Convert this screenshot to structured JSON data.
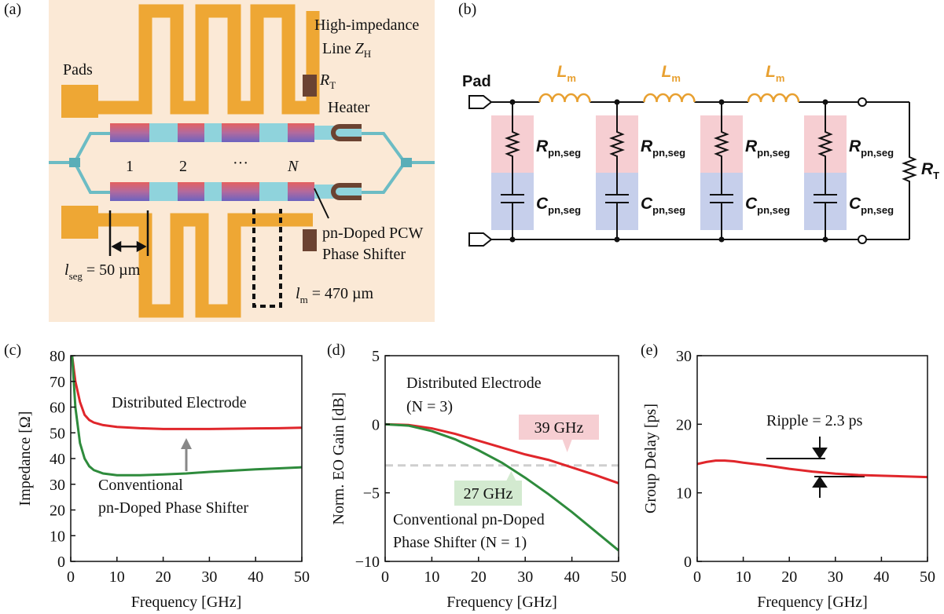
{
  "panel_labels": [
    "(a)",
    "(b)",
    "(c)",
    "(d)",
    "(e)"
  ],
  "diagram_a": {
    "high_impedance": "High-impedance",
    "line_zh": {
      "text": "Line ",
      "symbol": "Z",
      "subscript": "H"
    },
    "pads": "Pads",
    "rt": {
      "symbol": "R",
      "subscript": "T"
    },
    "heater": "Heater",
    "segments": [
      "1",
      "2",
      "···",
      "N"
    ],
    "phase_shifter": [
      "pn-Doped PCW",
      "Phase Shifter"
    ],
    "lseg": {
      "symbol": "l",
      "subscript": "seg",
      "text": " = 50 µm"
    },
    "lm": {
      "symbol": "l",
      "subscript": "m",
      "text": " = 470 µm"
    }
  },
  "diagram_b": {
    "pad": "Pad",
    "inductors": [
      {
        "symbol": "L",
        "subscript": "m"
      },
      {
        "symbol": "L",
        "subscript": "m"
      },
      {
        "symbol": "L",
        "subscript": "m"
      }
    ],
    "resistors": [
      {
        "symbol": "R",
        "subscript": "pn,seg"
      },
      {
        "symbol": "R",
        "subscript": "pn,seg"
      },
      {
        "symbol": "R",
        "subscript": "pn,seg"
      },
      {
        "symbol": "R",
        "subscript": "pn,seg"
      }
    ],
    "capacitors": [
      {
        "symbol": "C",
        "subscript": "pn,seg"
      },
      {
        "symbol": "C",
        "subscript": "pn,seg"
      },
      {
        "symbol": "C",
        "subscript": "pn,seg"
      },
      {
        "symbol": "C",
        "subscript": "pn,seg"
      }
    ],
    "rt": {
      "symbol": "R",
      "subscript": "T"
    }
  },
  "chart_data": [
    {
      "type": "line",
      "xlabel": "Frequency [GHz]",
      "ylabel": "Impedance [Ω]",
      "xlim": [
        0,
        50
      ],
      "ylim": [
        0,
        80
      ],
      "xticks": [
        0,
        10,
        20,
        30,
        40,
        50
      ],
      "yticks": [
        0,
        10,
        20,
        30,
        40,
        50,
        60,
        70,
        80
      ],
      "x": [
        0.3,
        1,
        2,
        3,
        4,
        5,
        7,
        10,
        15,
        20,
        25,
        30,
        35,
        40,
        45,
        50
      ],
      "series": [
        {
          "color": "#e0262b",
          "values": [
            80,
            70,
            62,
            57,
            55,
            54,
            53,
            52.3,
            51.8,
            51.5,
            51.5,
            51.5,
            51.6,
            51.7,
            51.8,
            52
          ]
        },
        {
          "color": "#2e8b3c",
          "values": [
            80,
            60,
            46,
            40,
            37,
            35.5,
            34.2,
            33.5,
            33.5,
            33.8,
            34.2,
            34.8,
            35.3,
            35.8,
            36.2,
            36.6
          ]
        }
      ],
      "annotations": [
        "Distributed Electrode",
        "Conventional",
        "pn-Doped Phase Shifter"
      ]
    },
    {
      "type": "line",
      "xlabel": "Frequency [GHz]",
      "ylabel": "Norm. EO Gain [dB]",
      "xlim": [
        0,
        50
      ],
      "ylim": [
        -10,
        5
      ],
      "xticks": [
        0,
        10,
        20,
        30,
        40,
        50
      ],
      "yticks": [
        {
          "value": -10,
          "label": "−10"
        },
        {
          "value": -5,
          "label": "−5"
        },
        0,
        5
      ],
      "x": [
        0,
        5,
        10,
        15,
        20,
        25,
        30,
        35,
        40,
        45,
        50
      ],
      "series": [
        {
          "color": "#e0262b",
          "values": [
            0,
            -0.05,
            -0.3,
            -0.7,
            -1.2,
            -1.7,
            -2.2,
            -2.6,
            -3.15,
            -3.7,
            -4.3
          ]
        },
        {
          "color": "#2e8b3c",
          "values": [
            0,
            -0.1,
            -0.5,
            -1.1,
            -1.9,
            -2.8,
            -3.9,
            -5.1,
            -6.4,
            -7.8,
            -9.2
          ]
        }
      ],
      "hline": -3,
      "callouts": [
        {
          "x": 39,
          "label": "39 GHz"
        },
        {
          "x": 27,
          "label": "27 GHz"
        }
      ],
      "annotations": [
        "Distributed Electrode",
        "(N = 3)",
        "Conventional pn-Doped",
        "Phase Shifter (N = 1)"
      ]
    },
    {
      "type": "line",
      "xlabel": "Frequency [GHz]",
      "ylabel": "Group Delay [ps]",
      "xlim": [
        0,
        50
      ],
      "ylim": [
        0,
        30
      ],
      "xticks": [
        0,
        10,
        20,
        30,
        40,
        50
      ],
      "yticks": [
        0,
        10,
        20,
        30
      ],
      "x": [
        0,
        2,
        4,
        6,
        8,
        10,
        15,
        20,
        25,
        30,
        35,
        40,
        45,
        50
      ],
      "series": [
        {
          "color": "#e0262b",
          "values": [
            14.2,
            14.5,
            14.7,
            14.7,
            14.6,
            14.4,
            14.0,
            13.5,
            13.1,
            12.8,
            12.6,
            12.5,
            12.4,
            12.3
          ]
        }
      ],
      "annotations": [
        "Ripple = 2.3 ps"
      ]
    }
  ]
}
